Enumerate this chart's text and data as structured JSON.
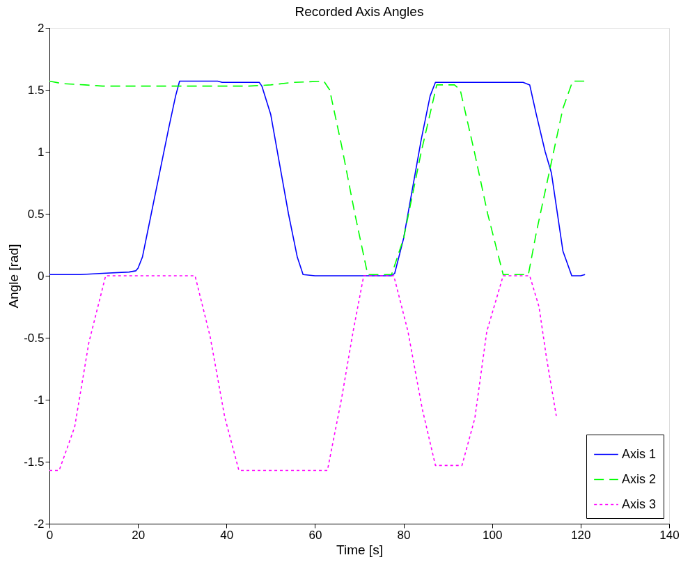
{
  "chart_data": {
    "type": "line",
    "title": "Recorded Axis Angles",
    "xlabel": "Time [s]",
    "ylabel": "Angle [rad]",
    "xlim": [
      0,
      140
    ],
    "xticks": [
      0,
      20,
      40,
      60,
      80,
      100,
      120,
      140
    ],
    "ylim": [
      -2,
      2
    ],
    "yticks": [
      -2,
      -1.5,
      -1,
      -0.5,
      0,
      0.5,
      1,
      1.5,
      2
    ],
    "grid": false,
    "legend": "bottom right",
    "marker": "none",
    "series": [
      {
        "name": "Axis 1",
        "color": "#0000ff",
        "line_style": "solid",
        "x": [
          0,
          7,
          12,
          18,
          19.5,
          20,
          21,
          23,
          25,
          27,
          28.5,
          29.4,
          31,
          38,
          39,
          47.4,
          48,
          50,
          52,
          54,
          56,
          57.3,
          60,
          70,
          77.3,
          78,
          80,
          82,
          84,
          86,
          87.2,
          88,
          107,
          108.5,
          110,
          112,
          113.4,
          116,
          118,
          120,
          121
        ],
        "values": [
          0.01,
          0.01,
          0.02,
          0.03,
          0.04,
          0.06,
          0.15,
          0.5,
          0.85,
          1.2,
          1.45,
          1.57,
          1.57,
          1.57,
          1.56,
          1.56,
          1.53,
          1.3,
          0.9,
          0.5,
          0.15,
          0.01,
          0.0,
          0.0,
          0.0,
          0.02,
          0.3,
          0.7,
          1.1,
          1.45,
          1.56,
          1.56,
          1.56,
          1.54,
          1.3,
          1.0,
          0.83,
          0.2,
          0.0,
          0.0,
          0.01
        ]
      },
      {
        "name": "Axis 2",
        "color": "#00ff00",
        "line_style": "dashed",
        "x": [
          0,
          3,
          8,
          12,
          45,
          50,
          55,
          62,
          63.3,
          66,
          69,
          71.9,
          77.3,
          80,
          84,
          87.5,
          91.5,
          92.8,
          96,
          99,
          102.5,
          108.2,
          110,
          113,
          116,
          118.2,
          121
        ],
        "values": [
          1.57,
          1.55,
          1.54,
          1.53,
          1.53,
          1.54,
          1.56,
          1.57,
          1.5,
          1.05,
          0.5,
          0.01,
          0.01,
          0.3,
          1.0,
          1.54,
          1.54,
          1.5,
          1.0,
          0.5,
          0.01,
          0.01,
          0.35,
          0.85,
          1.35,
          1.57,
          1.57
        ]
      },
      {
        "name": "Axis 3",
        "color": "#ff00ff",
        "line_style": "dotted",
        "x": [
          0,
          2.2,
          5.7,
          8.9,
          12.7,
          32.9,
          36.3,
          39.6,
          42.8,
          62.8,
          66,
          68.6,
          71,
          77.8,
          81,
          84.2,
          87.2,
          93.2,
          96.1,
          98.8,
          102.5,
          108.5,
          110.6,
          112.2,
          114.5
        ],
        "values": [
          -1.57,
          -1.57,
          -1.22,
          -0.54,
          0,
          0,
          -0.49,
          -1.14,
          -1.57,
          -1.57,
          -0.99,
          -0.45,
          0,
          0,
          -0.45,
          -1.07,
          -1.53,
          -1.53,
          -1.15,
          -0.45,
          0,
          0,
          -0.25,
          -0.64,
          -1.13
        ]
      }
    ]
  }
}
